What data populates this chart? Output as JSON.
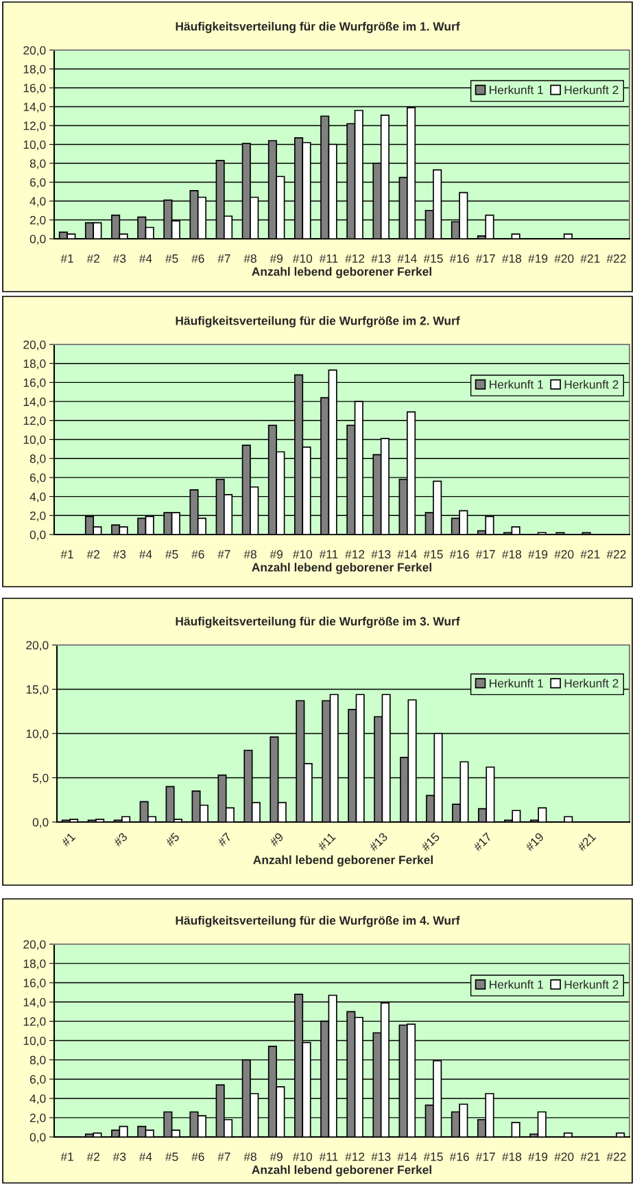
{
  "chart_data": [
    {
      "type": "bar",
      "title": "Häufigkeitsverteilung für die Wurfgröße im 1. Wurf",
      "xlabel": "Anzahl lebend geborener Ferkel",
      "categories": [
        "#1",
        "#2",
        "#3",
        "#4",
        "#5",
        "#6",
        "#7",
        "#8",
        "#9",
        "#10",
        "#11",
        "#12",
        "#13",
        "#14",
        "#15",
        "#16",
        "#17",
        "#18",
        "#19",
        "#20",
        "#21",
        "#22"
      ],
      "series": [
        {
          "name": "Herkunft 1",
          "color": "#808080",
          "values": [
            0.7,
            1.7,
            2.5,
            2.3,
            4.1,
            5.1,
            8.3,
            10.1,
            10.4,
            10.7,
            13.0,
            12.2,
            8.0,
            6.5,
            3.0,
            1.8,
            0.3,
            null,
            null,
            null,
            null,
            null
          ]
        },
        {
          "name": "Herkunft 2",
          "color": "#ffffff",
          "values": [
            0.5,
            1.7,
            0.5,
            1.2,
            1.9,
            4.4,
            2.4,
            4.4,
            6.6,
            10.2,
            10.0,
            13.6,
            13.1,
            13.9,
            7.3,
            4.9,
            2.5,
            0.5,
            null,
            0.5,
            null,
            null
          ]
        }
      ],
      "ylim": [
        0,
        20
      ],
      "yticks": [
        {
          "value": 0,
          "label": "0,0"
        },
        {
          "value": 2,
          "label": "2,0"
        },
        {
          "value": 4,
          "label": "4,0"
        },
        {
          "value": 6,
          "label": "6,0"
        },
        {
          "value": 8,
          "label": "8,0"
        },
        {
          "value": 10,
          "label": "10,0"
        },
        {
          "value": 12,
          "label": "12,0"
        },
        {
          "value": 14,
          "label": "14,0"
        },
        {
          "value": 16,
          "label": "16,0"
        },
        {
          "value": 18,
          "label": "18,0"
        },
        {
          "value": 20,
          "label": "20,0"
        }
      ],
      "grid": "y",
      "legend": "top right"
    },
    {
      "type": "bar",
      "title": "Häufigkeitsverteilung für die Wurfgröße im 2. Wurf",
      "xlabel": "Anzahl lebend geborener Ferkel",
      "categories": [
        "#1",
        "#2",
        "#3",
        "#4",
        "#5",
        "#6",
        "#7",
        "#8",
        "#9",
        "#10",
        "#11",
        "#12",
        "#13",
        "#14",
        "#15",
        "#16",
        "#17",
        "#18",
        "#19",
        "#20",
        "#21",
        "#22"
      ],
      "series": [
        {
          "name": "Herkunft 1",
          "color": "#808080",
          "values": [
            null,
            1.9,
            1.0,
            1.7,
            2.3,
            4.7,
            5.8,
            9.4,
            11.5,
            16.8,
            14.4,
            11.5,
            8.4,
            5.8,
            2.3,
            1.7,
            0.4,
            0.2,
            null,
            0.2,
            0.2,
            null
          ]
        },
        {
          "name": "Herkunft 2",
          "color": "#ffffff",
          "values": [
            null,
            0.8,
            0.8,
            1.9,
            2.3,
            1.7,
            4.2,
            5.0,
            8.7,
            9.2,
            17.3,
            14.0,
            10.1,
            12.9,
            5.6,
            2.5,
            1.9,
            0.8,
            0.2,
            null,
            null,
            null
          ]
        }
      ],
      "ylim": [
        0,
        20
      ],
      "yticks": [
        {
          "value": 0,
          "label": "0,0"
        },
        {
          "value": 2,
          "label": "2,0"
        },
        {
          "value": 4,
          "label": "4,0"
        },
        {
          "value": 6,
          "label": "6,0"
        },
        {
          "value": 8,
          "label": "8,0"
        },
        {
          "value": 10,
          "label": "10,0"
        },
        {
          "value": 12,
          "label": "12,0"
        },
        {
          "value": 14,
          "label": "14,0"
        },
        {
          "value": 16,
          "label": "16,0"
        },
        {
          "value": 18,
          "label": "18,0"
        },
        {
          "value": 20,
          "label": "20,0"
        }
      ],
      "grid": "y",
      "legend": "top right"
    },
    {
      "type": "bar",
      "title": "Häufigkeitsverteilung für die Wurfgröße im 3. Wurf",
      "xlabel": "Anzahl lebend geborener Ferkel",
      "categories": [
        "#1",
        null,
        "#3",
        null,
        "#5",
        null,
        "#7",
        null,
        "#9",
        null,
        "#11",
        null,
        "#13",
        null,
        "#15",
        null,
        "#17",
        null,
        "#19",
        null,
        "#21",
        null
      ],
      "series": [
        {
          "name": "Herkunft 1",
          "color": "#808080",
          "values": [
            0.2,
            0.2,
            0.2,
            2.3,
            4.0,
            3.5,
            5.3,
            8.1,
            9.6,
            13.7,
            13.7,
            12.7,
            11.9,
            7.3,
            3.0,
            2.0,
            1.5,
            0.2,
            0.2,
            null,
            null,
            null
          ]
        },
        {
          "name": "Herkunft 2",
          "color": "#ffffff",
          "values": [
            0.3,
            0.3,
            0.6,
            0.6,
            0.3,
            1.9,
            1.6,
            2.2,
            2.2,
            6.6,
            14.4,
            14.4,
            14.4,
            13.8,
            10.0,
            6.8,
            6.2,
            1.3,
            1.6,
            0.6,
            null,
            null
          ]
        }
      ],
      "ylim": [
        0,
        20
      ],
      "yticks": [
        {
          "value": 0,
          "label": "0,0"
        },
        {
          "value": 5,
          "label": "5,0"
        },
        {
          "value": 10,
          "label": "10,0"
        },
        {
          "value": 15,
          "label": "15,0"
        },
        {
          "value": 20,
          "label": "20,0"
        }
      ],
      "grid": "y",
      "legend": "top right"
    },
    {
      "type": "bar",
      "title": "Häufigkeitsverteilung für die Wurfgröße im 4. Wurf",
      "xlabel": "Anzahl lebend geborener Ferkel",
      "categories": [
        "#1",
        "#2",
        "#3",
        "#4",
        "#5",
        "#6",
        "#7",
        "#8",
        "#9",
        "#10",
        "#11",
        "#12",
        "#13",
        "#14",
        "#15",
        "#16",
        "#17",
        "#18",
        "#19",
        "#20",
        "#21",
        "#22"
      ],
      "series": [
        {
          "name": "Herkunft 1",
          "color": "#808080",
          "values": [
            null,
            0.3,
            0.7,
            1.1,
            2.6,
            2.6,
            5.4,
            8.0,
            9.4,
            14.8,
            12.0,
            13.0,
            10.8,
            11.6,
            3.3,
            2.6,
            1.8,
            null,
            0.3,
            null,
            null,
            null
          ]
        },
        {
          "name": "Herkunft 2",
          "color": "#ffffff",
          "values": [
            null,
            0.4,
            1.1,
            0.7,
            0.7,
            2.2,
            1.8,
            4.5,
            5.2,
            9.8,
            14.7,
            12.4,
            13.9,
            11.7,
            7.9,
            3.4,
            4.5,
            1.5,
            2.6,
            0.4,
            null,
            0.4
          ]
        }
      ],
      "ylim": [
        0,
        20
      ],
      "yticks": [
        {
          "value": 0,
          "label": "0,0"
        },
        {
          "value": 2,
          "label": "2,0"
        },
        {
          "value": 4,
          "label": "4,0"
        },
        {
          "value": 6,
          "label": "6,0"
        },
        {
          "value": 8,
          "label": "8,0"
        },
        {
          "value": 10,
          "label": "10,0"
        },
        {
          "value": 12,
          "label": "12,0"
        },
        {
          "value": 14,
          "label": "14,0"
        },
        {
          "value": 16,
          "label": "16,0"
        },
        {
          "value": 18,
          "label": "18,0"
        },
        {
          "value": 20,
          "label": "20,0"
        }
      ],
      "grid": "y",
      "legend": "top right"
    }
  ]
}
